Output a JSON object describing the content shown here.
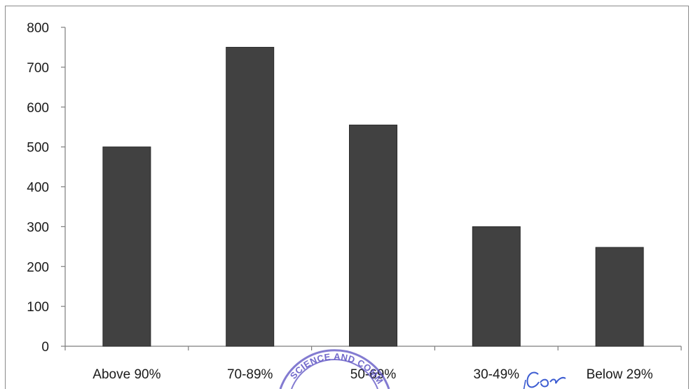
{
  "chart_data": {
    "type": "bar",
    "categories": [
      "Above 90%",
      "70-89%",
      "50-69%",
      "30-49%",
      "Below 29%"
    ],
    "values": [
      500,
      750,
      555,
      300,
      248
    ],
    "ylim": [
      0,
      800
    ],
    "yticks": [
      0,
      100,
      200,
      300,
      400,
      500,
      600,
      700,
      800
    ],
    "title": "",
    "xlabel": "",
    "ylabel": "",
    "grid": false,
    "legend": "none",
    "colors": {
      "bar": "#414141",
      "axis": "#7d7d7d",
      "stamp": "#5a4fc2",
      "signature": "#3b5bd1"
    },
    "stamp_text": "SCIENCE AND COMM"
  }
}
